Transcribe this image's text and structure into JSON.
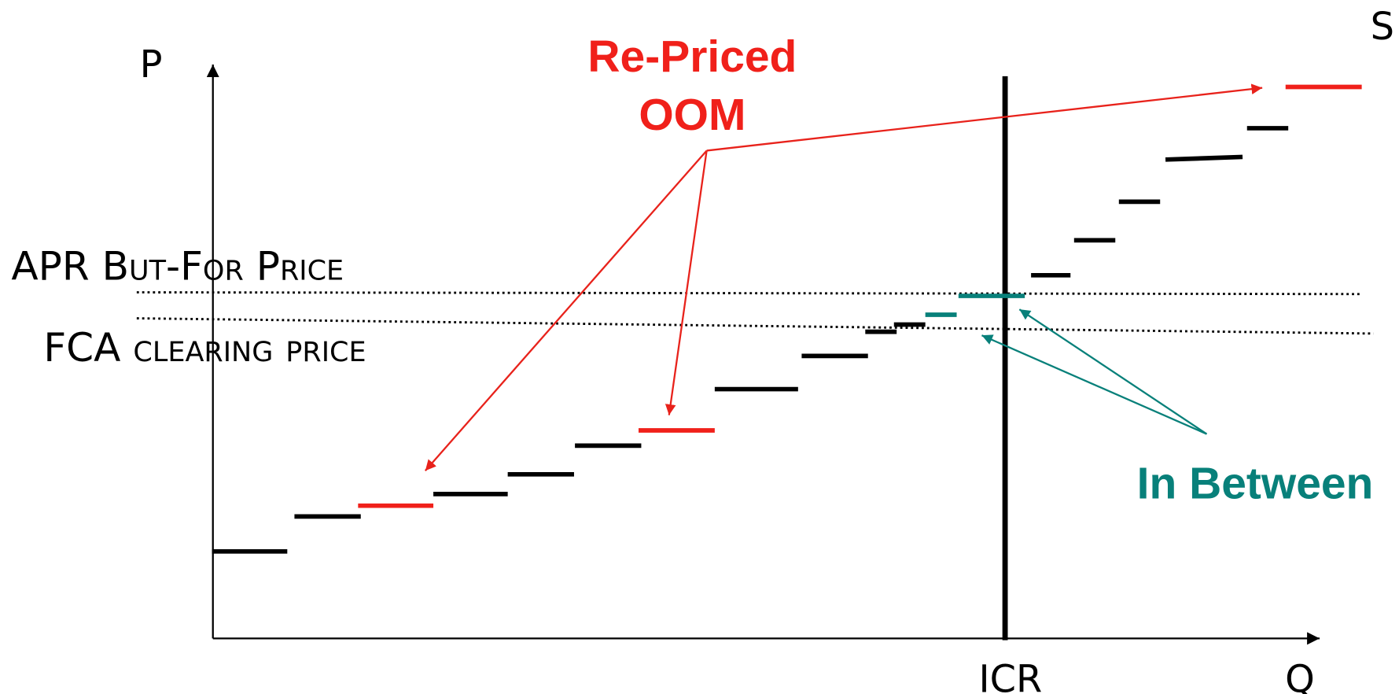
{
  "labels": {
    "p_axis": "P",
    "q_axis": "Q",
    "supply": "S",
    "icr": "ICR",
    "repriced": [
      "Re-Priced",
      "OOM"
    ],
    "apr": "APR But-For Price",
    "fca": "FCA clearing price",
    "in_between": "In Between"
  }
}
